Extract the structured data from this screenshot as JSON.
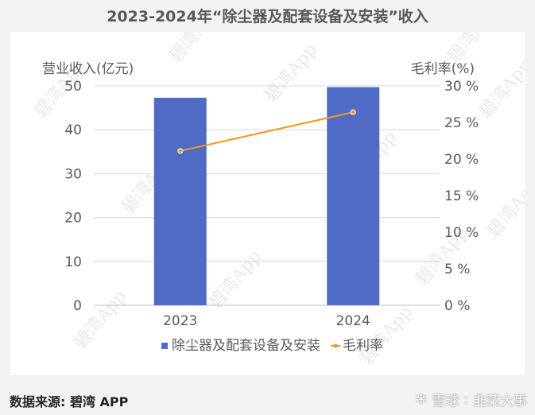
{
  "title": "2023-2024年“除尘器及配套设备及安装”收入",
  "footer": {
    "source": "数据来源: 碧湾 APP",
    "watermark_site": "雪球",
    "watermark_author": "韭菜大事",
    "watermark_glyph": "❄",
    "watermark_sep": ":"
  },
  "watermark_text": "碧湾App",
  "chart_data": {
    "type": "bar",
    "categories": [
      "2023",
      "2024"
    ],
    "ylabel_left": "营业收入(亿元)",
    "ylabel_right": "毛利率(%)",
    "ylim_left": [
      0,
      50
    ],
    "ylim_right": [
      0,
      30
    ],
    "yticks_left": [
      "0",
      "10",
      "20",
      "30",
      "40",
      "50"
    ],
    "yticks_right": [
      "0 %",
      "5 %",
      "10 %",
      "15 %",
      "20 %",
      "25 %",
      "30 %"
    ],
    "grid": true,
    "legend_position": "bottom",
    "series": [
      {
        "name": "除尘器及配套设备及安装",
        "type": "bar",
        "axis": "left",
        "color": "#4f6bc6",
        "values": [
          47.3,
          49.7
        ]
      },
      {
        "name": "毛利率",
        "type": "line",
        "axis": "right",
        "color": "#f4961d",
        "values": [
          21.1,
          26.4
        ]
      }
    ]
  }
}
